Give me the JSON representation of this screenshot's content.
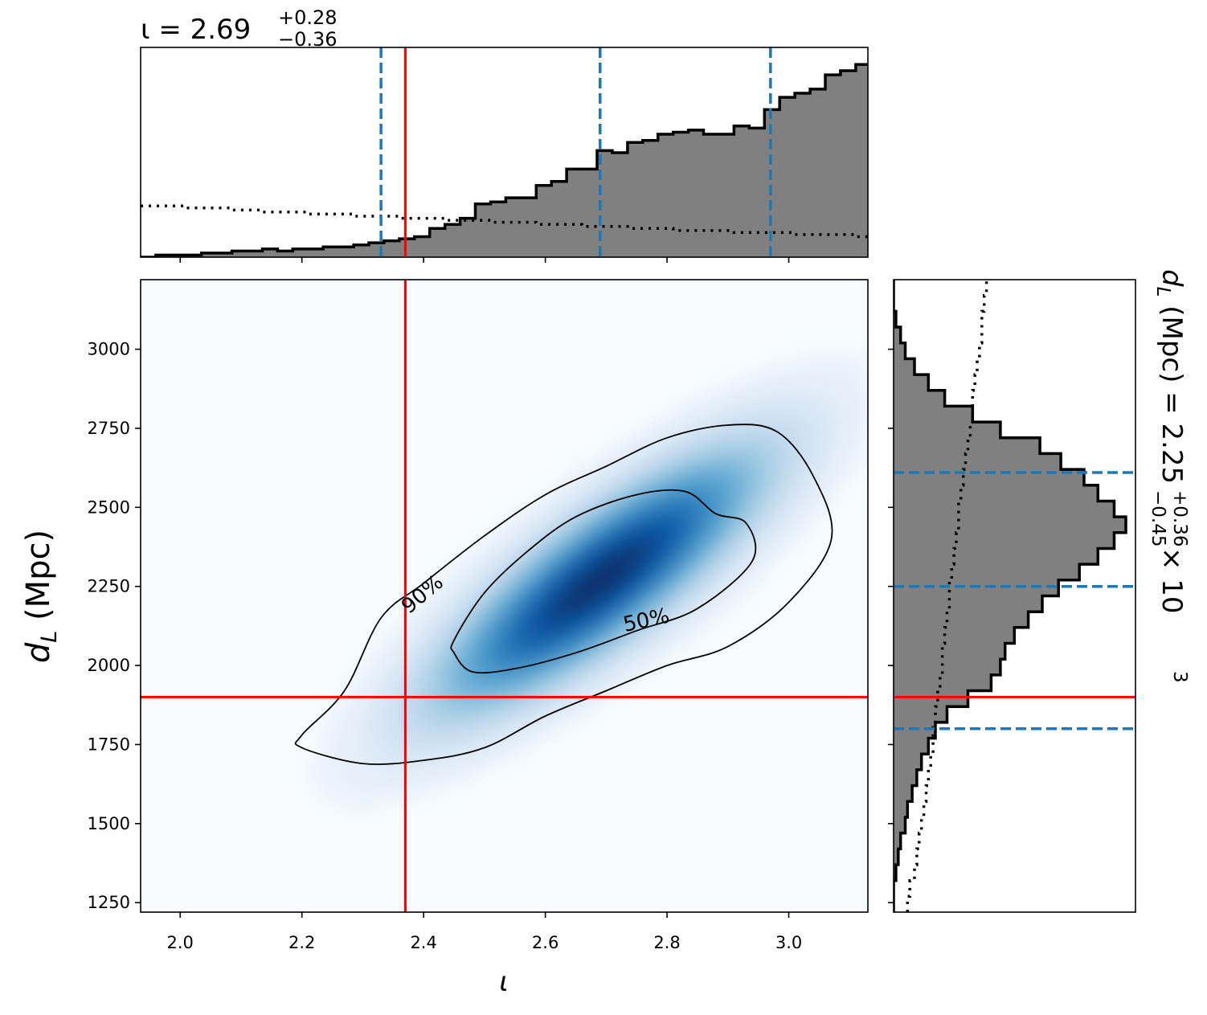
{
  "chart_data": [
    {
      "panel": "top-marginal",
      "type": "histogram",
      "title": "ι = 2.69",
      "title_plus": "+0.28",
      "title_minus": "−0.36",
      "parameter": "ι",
      "median": 2.69,
      "credible_interval": [
        2.33,
        2.97
      ],
      "injected_value": 2.37,
      "xlim": [
        1.935,
        3.13
      ],
      "bins_start": 1.935,
      "bin_width": 0.025,
      "posterior_heights": [
        0,
        1,
        1,
        1,
        2,
        2,
        3,
        3,
        4,
        3,
        4,
        4,
        5,
        5,
        6,
        7,
        8,
        9,
        10,
        14,
        16,
        19,
        26,
        27,
        29,
        29,
        35,
        37,
        43,
        43,
        52,
        51,
        56,
        57,
        60,
        61,
        62,
        60,
        60,
        64,
        63,
        72,
        78,
        80,
        82,
        89,
        91,
        94,
        91,
        88,
        84,
        80,
        82,
        78,
        74,
        71,
        66,
        72,
        74,
        63,
        56,
        45,
        29,
        25,
        22,
        18,
        13,
        12,
        12,
        12
      ],
      "prior_heights": [
        25,
        25,
        25,
        24,
        24,
        24,
        23,
        23,
        22,
        22,
        22,
        21,
        21,
        21,
        20,
        20,
        20,
        19,
        19,
        19,
        18,
        18,
        18,
        17,
        17,
        17,
        16,
        16,
        16,
        15,
        15,
        15,
        14,
        14,
        14,
        13,
        13,
        13,
        13,
        12,
        12,
        12,
        12,
        11,
        11,
        11,
        11,
        10,
        10,
        10,
        10,
        9,
        9,
        9,
        9,
        9,
        8,
        8,
        8,
        8,
        8,
        7,
        7,
        7,
        7,
        7,
        6,
        6,
        6,
        6
      ],
      "xticks": [
        "2.0",
        "2.2",
        "2.4",
        "2.6",
        "2.8",
        "3.0"
      ],
      "colors": {
        "fill": "#808080",
        "quantile": "#1f77b4",
        "injection": "#ff0000"
      }
    },
    {
      "panel": "joint",
      "type": "heatmap",
      "xlabel": "ι",
      "ylabel": "d_L (Mpc)",
      "xlim": [
        1.935,
        3.13
      ],
      "ylim": [
        1220,
        3220
      ],
      "xticks": [
        "2.0",
        "2.2",
        "2.4",
        "2.6",
        "2.8",
        "3.0"
      ],
      "yticks": [
        "1250",
        "1500",
        "1750",
        "2000",
        "2250",
        "2500",
        "2750",
        "3000"
      ],
      "injection": {
        "iota": 2.37,
        "d_L": 1900
      },
      "peak": {
        "iota": 2.69,
        "d_L": 2270
      },
      "contour_90": [
        [
          2.2,
          1740
        ],
        [
          2.3,
          1690
        ],
        [
          2.4,
          1700
        ],
        [
          2.5,
          1740
        ],
        [
          2.6,
          1840
        ],
        [
          2.7,
          1920
        ],
        [
          2.8,
          2000
        ],
        [
          2.9,
          2060
        ],
        [
          3.0,
          2200
        ],
        [
          3.07,
          2400
        ],
        [
          3.04,
          2600
        ],
        [
          2.98,
          2740
        ],
        [
          2.9,
          2760
        ],
        [
          2.8,
          2720
        ],
        [
          2.7,
          2630
        ],
        [
          2.6,
          2540
        ],
        [
          2.5,
          2410
        ],
        [
          2.4,
          2260
        ],
        [
          2.33,
          2150
        ],
        [
          2.27,
          1920
        ],
        [
          2.2,
          1780
        ]
      ],
      "contour_50": [
        [
          2.45,
          2040
        ],
        [
          2.48,
          1980
        ],
        [
          2.55,
          1990
        ],
        [
          2.65,
          2040
        ],
        [
          2.75,
          2110
        ],
        [
          2.85,
          2180
        ],
        [
          2.94,
          2330
        ],
        [
          2.93,
          2450
        ],
        [
          2.88,
          2480
        ],
        [
          2.83,
          2550
        ],
        [
          2.75,
          2540
        ],
        [
          2.65,
          2470
        ],
        [
          2.57,
          2360
        ],
        [
          2.5,
          2230
        ],
        [
          2.45,
          2080
        ]
      ],
      "contour_labels": [
        "90%",
        "50%"
      ],
      "colormap": "Blues"
    },
    {
      "panel": "right-marginal",
      "type": "histogram",
      "title": "d_L (Mpc) = 2.25",
      "title_plus": "+0.36",
      "title_minus": "−0.45",
      "title_scale": "× 10",
      "title_exponent": "3",
      "parameter": "d_L (Mpc)",
      "median": 2250,
      "credible_interval": [
        1800,
        2610
      ],
      "injected_value": 1900,
      "ylim": [
        1220,
        3220
      ],
      "bins_start": 1220,
      "bin_width": 50,
      "posterior_heights": [
        0,
        0,
        1,
        2,
        3,
        5,
        6,
        8,
        10,
        12,
        15,
        18,
        23,
        32,
        42,
        46,
        48,
        52,
        58,
        64,
        71,
        80,
        88,
        95,
        100,
        95,
        88,
        82,
        72,
        63,
        46,
        34,
        22,
        15,
        9,
        5,
        3,
        1,
        0,
        0
      ],
      "prior_heights": [
        6,
        7,
        9,
        10,
        11,
        12,
        13,
        14,
        15,
        16,
        17,
        17,
        18,
        19,
        20,
        21,
        21,
        22,
        23,
        24,
        24,
        25,
        26,
        27,
        28,
        28,
        29,
        30,
        31,
        32,
        33,
        34,
        34,
        35,
        36,
        37,
        38,
        38,
        39,
        40
      ],
      "colors": {
        "fill": "#808080",
        "quantile": "#1f77b4",
        "injection": "#ff0000"
      }
    }
  ]
}
